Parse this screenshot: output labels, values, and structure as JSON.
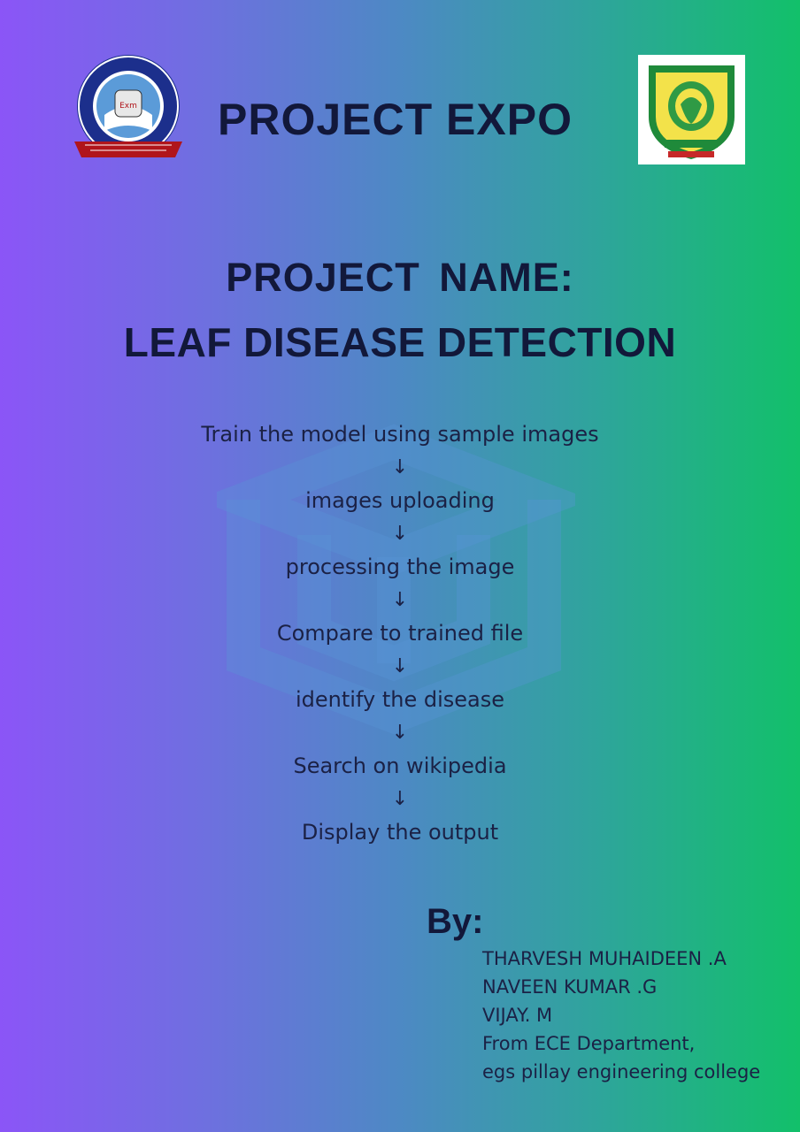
{
  "header": {
    "title": "PROJECT EXPO",
    "left_logo_icon": "institute-seal-icon",
    "right_logo_icon": "college-emblem-icon"
  },
  "project": {
    "name_label": "PROJECT  NAME:",
    "name": "LEAF DISEASE DETECTION"
  },
  "flow": {
    "arrow": "↓",
    "steps": [
      "Train the model using sample images",
      "images uploading",
      "processing the image",
      "Compare to trained file",
      "identify the disease",
      "Search on wikipedia",
      "Display the output"
    ]
  },
  "credits": {
    "label": "By:",
    "lines": [
      "THARVESH MUHAIDEEN .A",
      "NAVEEN KUMAR .G",
      "VIJAY. M",
      "From ECE Department,",
      "egs pillay engineering college"
    ]
  },
  "colors": {
    "gradient_start": "#8b55f7",
    "gradient_end": "#12c06a",
    "text_dark": "#12183a"
  }
}
